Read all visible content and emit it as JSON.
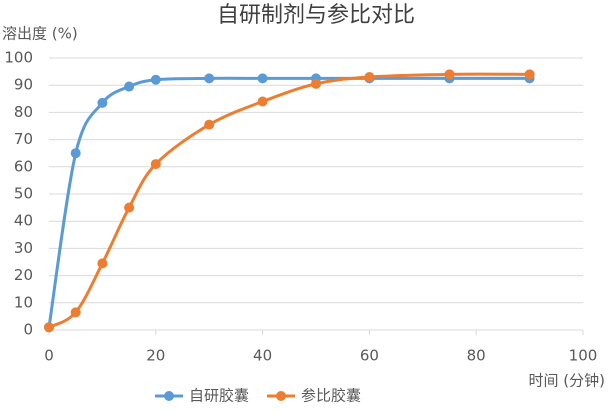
{
  "chart_data": {
    "type": "line",
    "title": "自研制剂与参比对比",
    "y_label": "溶出度 (%)",
    "x_label": "时间 (分钟)",
    "x": [
      0,
      5,
      10,
      15,
      20,
      30,
      40,
      50,
      60,
      75,
      90
    ],
    "series": [
      {
        "name": "自研胶囊",
        "color": "#5b9bd5",
        "values": [
          1,
          65,
          83.5,
          89.5,
          92,
          92.5,
          92.5,
          92.5,
          92.5,
          92.5,
          92.5
        ]
      },
      {
        "name": "参比胶囊",
        "color": "#ed7d31",
        "values": [
          1,
          6.5,
          24.5,
          45,
          61,
          75.5,
          84,
          90.5,
          93,
          94,
          94
        ]
      }
    ],
    "xlim": [
      0,
      100
    ],
    "xticks": [
      0,
      20,
      40,
      60,
      80,
      100
    ],
    "ylim": [
      0,
      100
    ],
    "yticks": [
      0,
      10,
      20,
      30,
      40,
      50,
      60,
      70,
      80,
      90,
      100
    ],
    "grid": true,
    "legend": "bottom"
  }
}
